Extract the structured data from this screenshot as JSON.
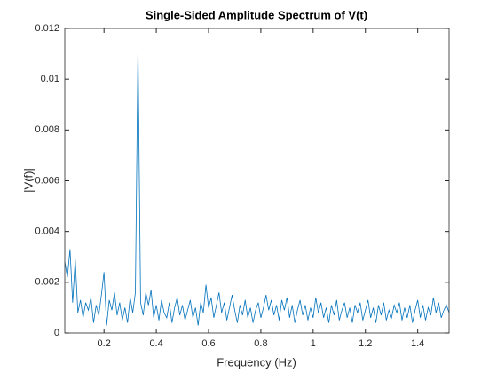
{
  "chart_data": {
    "type": "line",
    "title": "Single-Sided Amplitude Spectrum of V(t)",
    "x_label": "Frequency (Hz)",
    "y_label": "|V(f)|",
    "x": [
      0.05,
      0.06,
      0.07,
      0.08,
      0.09,
      0.1,
      0.11,
      0.12,
      0.13,
      0.14,
      0.15,
      0.16,
      0.17,
      0.18,
      0.19,
      0.2,
      0.21,
      0.22,
      0.23,
      0.24,
      0.25,
      0.26,
      0.27,
      0.28,
      0.29,
      0.3,
      0.31,
      0.32,
      0.33,
      0.34,
      0.35,
      0.36,
      0.37,
      0.38,
      0.39,
      0.4,
      0.41,
      0.42,
      0.43,
      0.44,
      0.45,
      0.46,
      0.47,
      0.48,
      0.49,
      0.5,
      0.51,
      0.52,
      0.53,
      0.54,
      0.55,
      0.56,
      0.57,
      0.58,
      0.59,
      0.6,
      0.61,
      0.62,
      0.63,
      0.64,
      0.65,
      0.66,
      0.67,
      0.68,
      0.69,
      0.7,
      0.71,
      0.72,
      0.73,
      0.74,
      0.75,
      0.76,
      0.77,
      0.78,
      0.79,
      0.8,
      0.81,
      0.82,
      0.83,
      0.84,
      0.85,
      0.86,
      0.87,
      0.88,
      0.89,
      0.9,
      0.91,
      0.92,
      0.93,
      0.94,
      0.95,
      0.96,
      0.97,
      0.98,
      0.99,
      1.0,
      1.01,
      1.02,
      1.03,
      1.04,
      1.05,
      1.06,
      1.07,
      1.08,
      1.09,
      1.1,
      1.11,
      1.12,
      1.13,
      1.14,
      1.15,
      1.16,
      1.17,
      1.18,
      1.19,
      1.2,
      1.21,
      1.22,
      1.23,
      1.24,
      1.25,
      1.26,
      1.27,
      1.28,
      1.29,
      1.3,
      1.31,
      1.32,
      1.33,
      1.34,
      1.35,
      1.36,
      1.37,
      1.38,
      1.39,
      1.4,
      1.41,
      1.42,
      1.43,
      1.44,
      1.45,
      1.46,
      1.47,
      1.48,
      1.49,
      1.5,
      1.51,
      1.52
    ],
    "series": [
      {
        "name": "|V(f)|",
        "color": "#0072bd",
        "values": [
          0.0028,
          0.0022,
          0.0033,
          0.0012,
          0.0029,
          0.0008,
          0.0013,
          0.0006,
          0.0012,
          0.0009,
          0.0014,
          0.0004,
          0.0011,
          0.0007,
          0.0015,
          0.0024,
          0.0003,
          0.0013,
          0.0009,
          0.0016,
          0.0007,
          0.0012,
          0.0005,
          0.001,
          0.0004,
          0.0014,
          0.0008,
          0.0016,
          0.0113,
          0.0012,
          0.0007,
          0.0016,
          0.0011,
          0.0017,
          0.0006,
          0.0011,
          0.0005,
          0.0013,
          0.0008,
          0.0006,
          0.0012,
          0.0004,
          0.001,
          0.0014,
          0.0007,
          0.0011,
          0.0005,
          0.0009,
          0.0013,
          0.0006,
          0.001,
          0.0003,
          0.0012,
          0.0008,
          0.0019,
          0.001,
          0.0014,
          0.0006,
          0.0011,
          0.0016,
          0.0008,
          0.0012,
          0.0005,
          0.001,
          0.0015,
          0.0009,
          0.0004,
          0.0011,
          0.0007,
          0.0013,
          0.0006,
          0.001,
          0.0004,
          0.0009,
          0.0012,
          0.0006,
          0.001,
          0.0015,
          0.0009,
          0.0013,
          0.0007,
          0.0011,
          0.0005,
          0.0013,
          0.0009,
          0.0014,
          0.0006,
          0.0011,
          0.0004,
          0.0009,
          0.0013,
          0.0007,
          0.0011,
          0.0005,
          0.001,
          0.0006,
          0.0014,
          0.0008,
          0.0012,
          0.0006,
          0.001,
          0.0004,
          0.0011,
          0.0007,
          0.0013,
          0.0005,
          0.0009,
          0.0012,
          0.0006,
          0.001,
          0.0004,
          0.0011,
          0.0008,
          0.0012,
          0.0005,
          0.0009,
          0.0013,
          0.0006,
          0.001,
          0.0004,
          0.0011,
          0.0007,
          0.0012,
          0.0005,
          0.0009,
          0.0006,
          0.0011,
          0.0008,
          0.0012,
          0.0005,
          0.001,
          0.0006,
          0.0011,
          0.0004,
          0.0009,
          0.0013,
          0.0006,
          0.0011,
          0.0005,
          0.001,
          0.0007,
          0.0014,
          0.0008,
          0.0012,
          0.0006,
          0.0009,
          0.0011,
          0.0008
        ]
      }
    ],
    "xlim": [
      0.05,
      1.52
    ],
    "xticks": [
      0.2,
      0.4,
      0.6,
      0.8,
      1,
      1.2,
      1.4
    ],
    "ylim": [
      0,
      0.012
    ],
    "yticks": [
      0,
      0.002,
      0.004,
      0.006,
      0.008,
      0.01,
      0.012
    ],
    "grid": false
  }
}
